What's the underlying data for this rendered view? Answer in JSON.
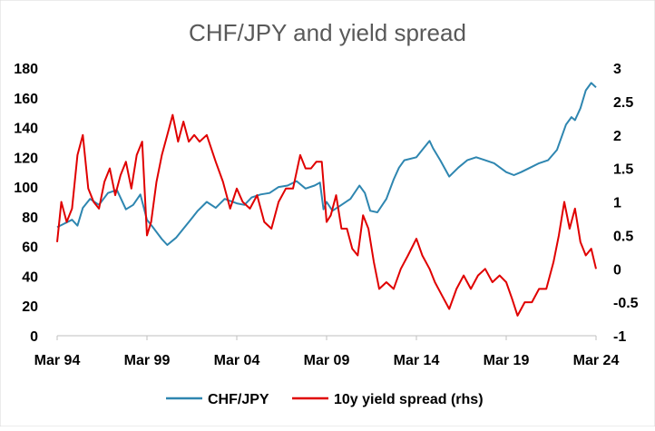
{
  "chart_data": {
    "type": "line",
    "title": "CHF/JPY and yield spread",
    "xlabel": "",
    "ylabel": "",
    "y2label": "",
    "x_tick_labels": [
      "Mar 94",
      "Mar 99",
      "Mar 04",
      "Mar 09",
      "Mar 14",
      "Mar 19",
      "Mar 24"
    ],
    "x_tick_years": [
      1994.17,
      1999.17,
      2004.17,
      2009.17,
      2014.17,
      2019.17,
      2024.17
    ],
    "xlim": [
      1994.17,
      2024.17
    ],
    "ylim": [
      0,
      180
    ],
    "y_ticks": [
      0,
      20,
      40,
      60,
      80,
      100,
      120,
      140,
      160,
      180
    ],
    "y2lim": [
      -1,
      3
    ],
    "y2_ticks": [
      "-1",
      "-0.5",
      "0",
      "0.5",
      "1",
      "1.5",
      "2",
      "2.5",
      "3"
    ],
    "y2_tick_values": [
      -1,
      -0.5,
      0,
      0.5,
      1,
      1.5,
      2,
      2.5,
      3
    ],
    "grid": false,
    "legend_position": "bottom",
    "series": [
      {
        "name": "CHF/JPY",
        "axis": "left",
        "color": "#2E86B0",
        "x": [
          1994.17,
          1994.5,
          1995.0,
          1995.3,
          1995.6,
          1996.0,
          1996.5,
          1997.0,
          1997.5,
          1998.0,
          1998.4,
          1998.8,
          1999.17,
          1999.5,
          2000.0,
          2000.3,
          2000.8,
          2001.2,
          2001.6,
          2002.0,
          2002.5,
          2003.0,
          2003.5,
          2004.17,
          2004.6,
          2005.0,
          2005.5,
          2006.0,
          2006.5,
          2007.0,
          2007.5,
          2008.0,
          2008.5,
          2008.8,
          2009.0,
          2009.17,
          2009.5,
          2010.0,
          2010.5,
          2011.0,
          2011.3,
          2011.6,
          2012.0,
          2012.5,
          2012.9,
          2013.2,
          2013.5,
          2014.17,
          2014.5,
          2014.9,
          2015.1,
          2015.5,
          2016.0,
          2016.5,
          2017.0,
          2017.5,
          2018.0,
          2018.5,
          2019.17,
          2019.6,
          2020.0,
          2020.5,
          2021.0,
          2021.5,
          2022.0,
          2022.5,
          2022.8,
          2023.0,
          2023.3,
          2023.6,
          2023.9,
          2024.17
        ],
        "values": [
          73,
          75,
          78,
          74,
          86,
          92,
          88,
          96,
          98,
          85,
          88,
          95,
          78,
          73,
          65,
          61,
          66,
          72,
          78,
          84,
          90,
          86,
          92,
          89,
          88,
          93,
          95,
          96,
          100,
          101,
          104,
          99,
          101,
          103,
          85,
          90,
          84,
          88,
          92,
          101,
          96,
          84,
          83,
          92,
          105,
          113,
          118,
          120,
          125,
          131,
          126,
          118,
          107,
          113,
          118,
          120,
          118,
          116,
          110,
          108,
          110,
          113,
          116,
          118,
          125,
          142,
          147,
          145,
          153,
          165,
          170,
          167
        ]
      },
      {
        "name": "10y yield spread (rhs)",
        "axis": "right",
        "color": "#E00000",
        "x": [
          1994.17,
          1994.4,
          1994.7,
          1995.0,
          1995.3,
          1995.6,
          1995.9,
          1996.2,
          1996.5,
          1996.8,
          1997.1,
          1997.4,
          1997.7,
          1998.0,
          1998.3,
          1998.6,
          1998.9,
          1999.17,
          1999.4,
          1999.7,
          2000.0,
          2000.3,
          2000.6,
          2000.9,
          2001.2,
          2001.5,
          2001.8,
          2002.1,
          2002.5,
          2003.0,
          2003.4,
          2003.8,
          2004.17,
          2004.5,
          2004.9,
          2005.3,
          2005.7,
          2006.1,
          2006.5,
          2006.9,
          2007.3,
          2007.7,
          2008.0,
          2008.3,
          2008.6,
          2008.9,
          2009.17,
          2009.4,
          2009.7,
          2010.0,
          2010.3,
          2010.6,
          2010.9,
          2011.2,
          2011.5,
          2011.8,
          2012.1,
          2012.5,
          2012.9,
          2013.3,
          2013.7,
          2014.17,
          2014.5,
          2014.9,
          2015.2,
          2015.6,
          2016.0,
          2016.4,
          2016.8,
          2017.2,
          2017.6,
          2018.0,
          2018.4,
          2018.8,
          2019.17,
          2019.5,
          2019.8,
          2020.2,
          2020.6,
          2021.0,
          2021.4,
          2021.8,
          2022.1,
          2022.4,
          2022.7,
          2023.0,
          2023.3,
          2023.6,
          2023.9,
          2024.17
        ],
        "values": [
          0.4,
          1.0,
          0.7,
          0.9,
          1.7,
          2.0,
          1.2,
          1.0,
          0.9,
          1.3,
          1.5,
          1.1,
          1.4,
          1.6,
          1.2,
          1.7,
          1.9,
          0.5,
          0.7,
          1.3,
          1.7,
          2.0,
          2.3,
          1.9,
          2.2,
          1.9,
          2.0,
          1.9,
          2.0,
          1.6,
          1.3,
          0.9,
          1.2,
          1.0,
          0.9,
          1.1,
          0.7,
          0.6,
          1.0,
          1.2,
          1.2,
          1.7,
          1.5,
          1.5,
          1.6,
          1.6,
          0.7,
          0.8,
          1.1,
          0.6,
          0.6,
          0.3,
          0.2,
          0.8,
          0.6,
          0.1,
          -0.3,
          -0.2,
          -0.3,
          0.0,
          0.2,
          0.45,
          0.2,
          0.0,
          -0.2,
          -0.4,
          -0.6,
          -0.3,
          -0.1,
          -0.3,
          -0.1,
          0.0,
          -0.2,
          -0.1,
          -0.2,
          -0.45,
          -0.7,
          -0.5,
          -0.5,
          -0.3,
          -0.3,
          0.1,
          0.5,
          1.0,
          0.6,
          0.9,
          0.4,
          0.2,
          0.3,
          0.0
        ]
      }
    ]
  }
}
